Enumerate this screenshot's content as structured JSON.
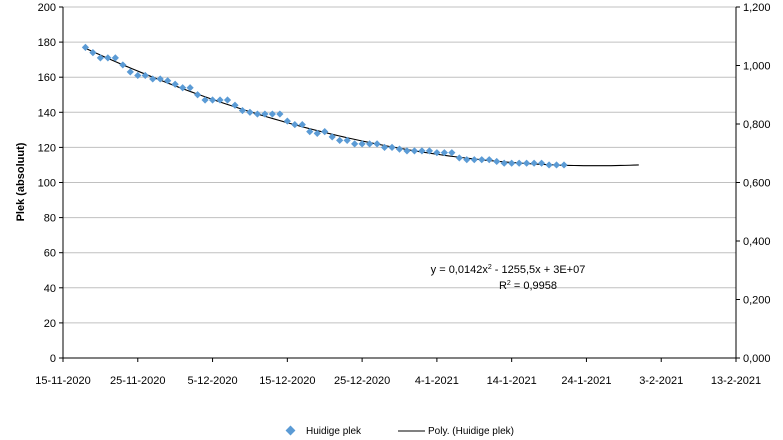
{
  "chart_data": {
    "type": "scatter",
    "title": "",
    "xlabel": "",
    "ylabel": "Plek (absoluut)",
    "x_ticks": [
      "15-11-2020",
      "25-11-2020",
      "5-12-2020",
      "15-12-2020",
      "25-12-2020",
      "4-1-2021",
      "14-1-2021",
      "24-1-2021",
      "3-2-2021",
      "13-2-2021"
    ],
    "y_ticks": [
      "0",
      "20",
      "40",
      "60",
      "80",
      "100",
      "120",
      "140",
      "160",
      "180",
      "200"
    ],
    "y2_ticks": [
      "0,000",
      "0,200",
      "0,400",
      "0,600",
      "0,800",
      "1,000",
      "1,200"
    ],
    "xlim": [
      "2020-11-15",
      "2021-02-13"
    ],
    "ylim": [
      0,
      200
    ],
    "y2lim": [
      0,
      1.2
    ],
    "grid": true,
    "legend_position": "bottom",
    "colors": {
      "marker": "#5b9bd5",
      "trendline": "#000000",
      "grid": "#c0c0c0"
    },
    "series": [
      {
        "name": "Huidige plek",
        "marker": "diamond",
        "x": [
          "2020-11-18",
          "2020-11-19",
          "2020-11-20",
          "2020-11-21",
          "2020-11-22",
          "2020-11-23",
          "2020-11-24",
          "2020-11-25",
          "2020-11-26",
          "2020-11-27",
          "2020-11-28",
          "2020-11-29",
          "2020-11-30",
          "2020-12-01",
          "2020-12-02",
          "2020-12-03",
          "2020-12-04",
          "2020-12-05",
          "2020-12-06",
          "2020-12-07",
          "2020-12-08",
          "2020-12-09",
          "2020-12-10",
          "2020-12-11",
          "2020-12-12",
          "2020-12-13",
          "2020-12-14",
          "2020-12-15",
          "2020-12-16",
          "2020-12-17",
          "2020-12-18",
          "2020-12-19",
          "2020-12-20",
          "2020-12-21",
          "2020-12-22",
          "2020-12-23",
          "2020-12-24",
          "2020-12-25",
          "2020-12-26",
          "2020-12-27",
          "2020-12-28",
          "2020-12-29",
          "2020-12-30",
          "2020-12-31",
          "2021-01-01",
          "2021-01-02",
          "2021-01-03",
          "2021-01-04",
          "2021-01-05",
          "2021-01-06",
          "2021-01-07",
          "2021-01-08",
          "2021-01-09",
          "2021-01-10",
          "2021-01-11",
          "2021-01-12",
          "2021-01-13",
          "2021-01-14",
          "2021-01-15",
          "2021-01-16",
          "2021-01-17",
          "2021-01-18",
          "2021-01-19",
          "2021-01-20",
          "2021-01-21"
        ],
        "y": [
          177,
          174,
          171,
          171,
          171,
          167,
          163,
          161,
          161,
          159,
          159,
          158,
          156,
          154,
          154,
          150,
          147,
          147,
          147,
          147,
          144,
          141,
          140,
          139,
          139,
          139,
          139,
          135,
          133,
          133,
          129,
          128,
          129,
          126,
          124,
          124,
          122,
          122,
          122,
          122,
          120,
          120,
          119,
          118,
          118,
          118,
          118,
          117,
          117,
          117,
          114,
          113,
          113,
          113,
          113,
          112,
          111,
          111,
          111,
          111,
          111,
          111,
          110,
          110,
          110
        ]
      },
      {
        "name": "Poly. (Huidige plek)",
        "type": "line",
        "x": [
          "2020-11-18",
          "2021-01-31"
        ]
      }
    ],
    "annotations": [
      {
        "text": "y = 0,0142x",
        "sup": "2",
        "rest": " - 1255,5x + 3E+07"
      },
      {
        "text": "R",
        "sup": "2",
        "rest": " = 0,9958"
      }
    ]
  }
}
